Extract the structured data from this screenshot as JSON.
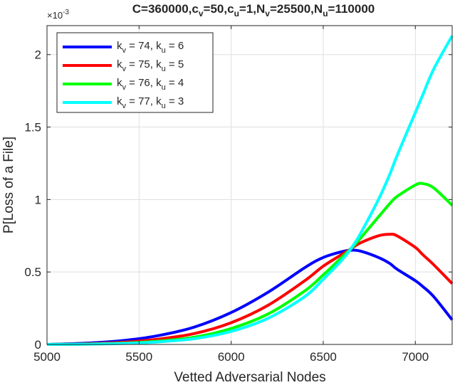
{
  "chart_data": {
    "type": "line",
    "title": {
      "parts": [
        {
          "text": "C=360000,c",
          "sub": false
        },
        {
          "text": "v",
          "sub": true
        },
        {
          "text": "=50,c",
          "sub": false
        },
        {
          "text": "u",
          "sub": true
        },
        {
          "text": "=1,N",
          "sub": false
        },
        {
          "text": "v",
          "sub": true
        },
        {
          "text": "=25500,N",
          "sub": false
        },
        {
          "text": "u",
          "sub": true
        },
        {
          "text": "=110000",
          "sub": false
        }
      ]
    },
    "xlabel": "Vetted Adversarial Nodes",
    "ylabel": "P[Loss of a File]",
    "y_exponent_label": "×10",
    "y_exponent": "-3",
    "y_scale": 0.001,
    "xlim": [
      5000,
      7200
    ],
    "ylim": [
      0,
      2.2
    ],
    "x_ticks": [
      5000,
      5500,
      6000,
      6500,
      7000
    ],
    "x_tick_labels": [
      "5000",
      "5500",
      "6000",
      "6500",
      "7000"
    ],
    "y_ticks": [
      0,
      0.5,
      1,
      1.5,
      2
    ],
    "y_tick_labels": [
      "0",
      "0.5",
      "1",
      "1.5",
      "2"
    ],
    "grid": true,
    "legend_position": "top-left",
    "x": [
      5000,
      5200,
      5400,
      5600,
      5800,
      6000,
      6200,
      6400,
      6500,
      6600,
      6650,
      6700,
      6800,
      6860,
      6900,
      7000,
      7040,
      7100,
      7200
    ],
    "series": [
      {
        "label_parts": [
          {
            "text": "k",
            "sub": false
          },
          {
            "text": "v",
            "sub": true
          },
          {
            "text": " = 74, k",
            "sub": false
          },
          {
            "text": "u",
            "sub": true
          },
          {
            "text": " = 6",
            "sub": false
          }
        ],
        "color": "#0000ff",
        "values": [
          0.0,
          0.008,
          0.025,
          0.06,
          0.12,
          0.22,
          0.36,
          0.53,
          0.6,
          0.64,
          0.65,
          0.645,
          0.6,
          0.56,
          0.52,
          0.44,
          0.4,
          0.33,
          0.17
        ]
      },
      {
        "label_parts": [
          {
            "text": "k",
            "sub": false
          },
          {
            "text": "v",
            "sub": true
          },
          {
            "text": " = 75, k",
            "sub": false
          },
          {
            "text": "u",
            "sub": true
          },
          {
            "text": " = 5",
            "sub": false
          }
        ],
        "color": "#ff0000",
        "values": [
          0.0,
          0.004,
          0.014,
          0.036,
          0.075,
          0.15,
          0.27,
          0.44,
          0.54,
          0.62,
          0.66,
          0.7,
          0.75,
          0.76,
          0.75,
          0.67,
          0.62,
          0.55,
          0.42
        ]
      },
      {
        "label_parts": [
          {
            "text": "k",
            "sub": false
          },
          {
            "text": "v",
            "sub": true
          },
          {
            "text": " = 76, k",
            "sub": false
          },
          {
            "text": "u",
            "sub": true
          },
          {
            "text": " = 4",
            "sub": false
          }
        ],
        "color": "#00ff00",
        "values": [
          0.0,
          0.002,
          0.008,
          0.022,
          0.05,
          0.11,
          0.21,
          0.37,
          0.48,
          0.6,
          0.66,
          0.73,
          0.88,
          0.97,
          1.02,
          1.1,
          1.11,
          1.08,
          0.96
        ]
      },
      {
        "label_parts": [
          {
            "text": "k",
            "sub": false
          },
          {
            "text": "v",
            "sub": true
          },
          {
            "text": " = 77, k",
            "sub": false
          },
          {
            "text": "u",
            "sub": true
          },
          {
            "text": " = 3",
            "sub": false
          }
        ],
        "color": "#00ffff",
        "values": [
          0.0,
          0.0015,
          0.006,
          0.017,
          0.04,
          0.09,
          0.18,
          0.33,
          0.45,
          0.58,
          0.66,
          0.76,
          1.0,
          1.17,
          1.3,
          1.6,
          1.72,
          1.9,
          2.13
        ]
      }
    ]
  }
}
